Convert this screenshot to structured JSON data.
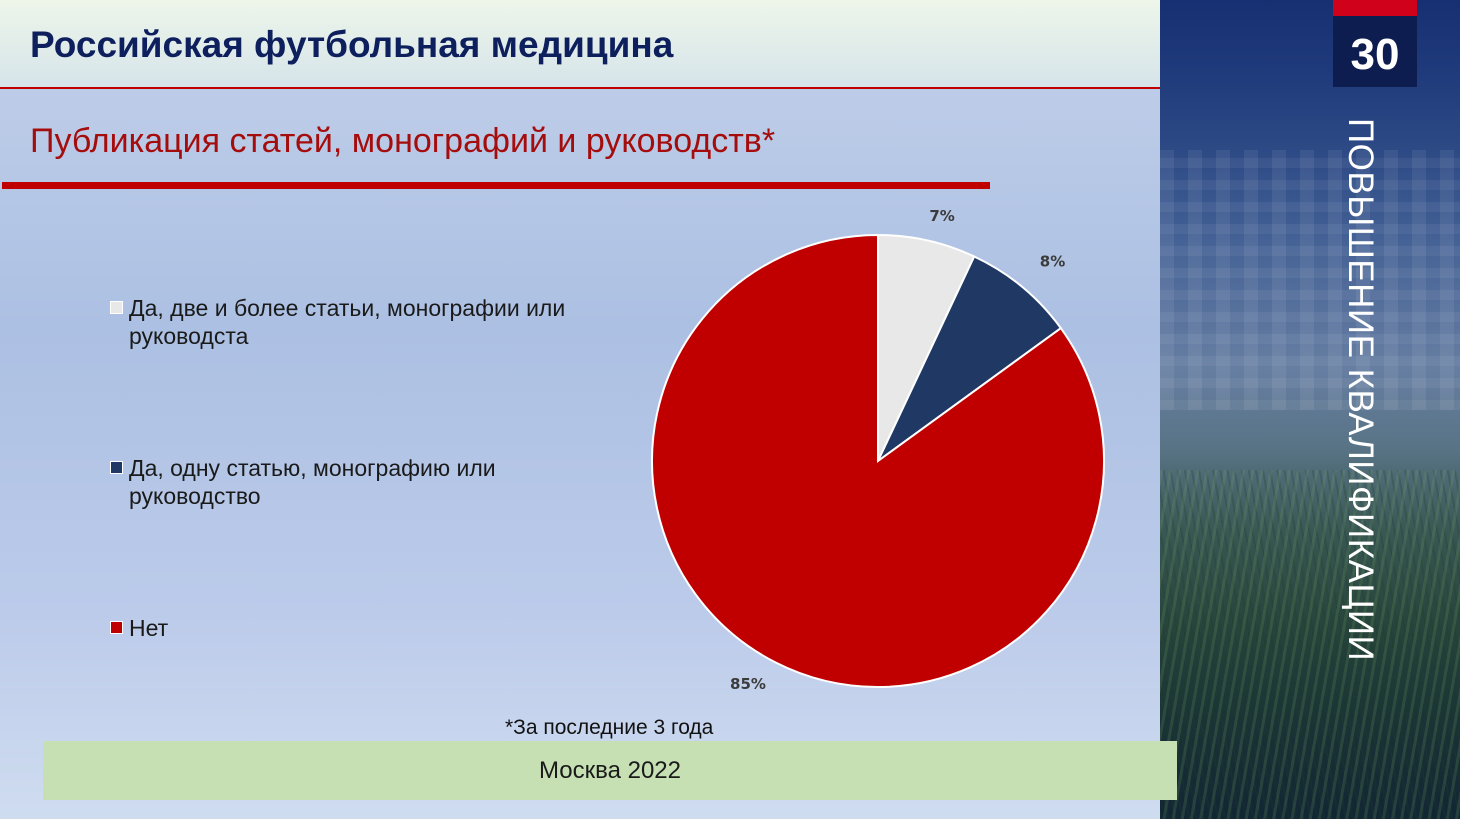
{
  "header": {
    "title": "Российская футбольная медицина",
    "page_number": "30"
  },
  "subtitle": "Публикация статей, монографий и руководств*",
  "side_panel": {
    "vertical_text": "ПОВЫШЕНИЕ КВАЛИФИКАЦИИ"
  },
  "footnote": "*За последние 3  года",
  "footer": {
    "text": "Москва 2022"
  },
  "colors": {
    "two_or_more": "#e8e8e8",
    "one": "#1f3864",
    "no": "#c00000"
  },
  "chart_data": {
    "type": "pie",
    "title": "",
    "legend_placement": "left",
    "labels": [
      "Да, две и более статьи, монографии или руководста",
      "Да, одну статью, монографию или руководство",
      "Нет"
    ],
    "values": [
      7,
      8,
      85
    ],
    "value_labels": [
      "7%",
      "8%",
      "85%"
    ],
    "colors": [
      "#e8e8e8",
      "#1f3864",
      "#c00000"
    ]
  }
}
